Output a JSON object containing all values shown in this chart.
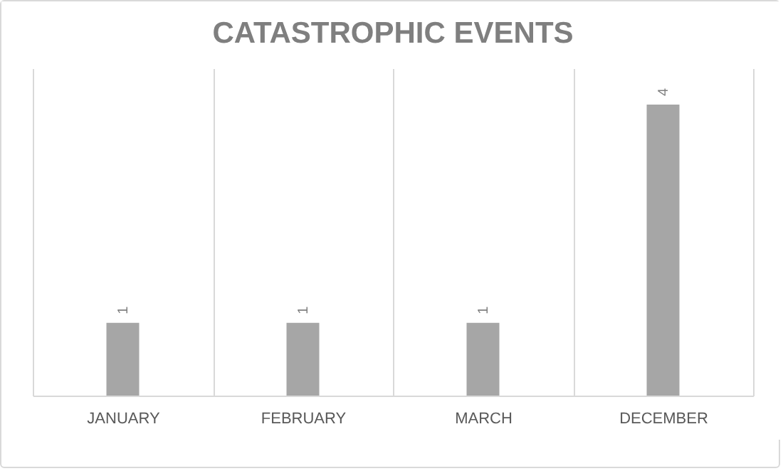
{
  "chart_data": {
    "type": "bar",
    "title": "CATASTROPHIC EVENTS",
    "categories": [
      "JANUARY",
      "FEBRUARY",
      "MARCH",
      "DECEMBER"
    ],
    "values": [
      1,
      1,
      1,
      4
    ],
    "color": "#a6a6a6",
    "ylim": [
      0,
      4.5
    ],
    "tick_labels": "x",
    "grid": "x",
    "data_labels": true
  }
}
